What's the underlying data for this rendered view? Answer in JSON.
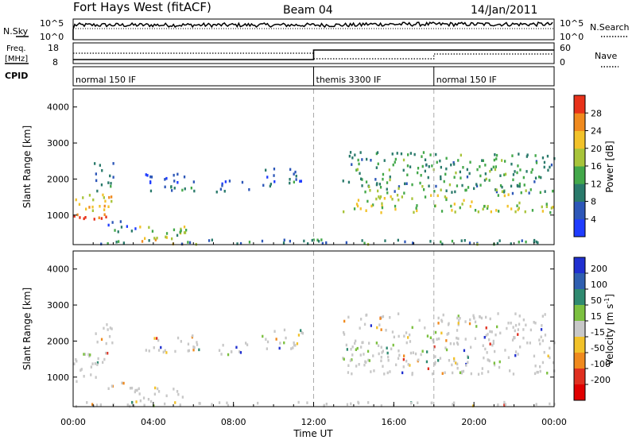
{
  "header": {
    "station": "Fort Hays West (fitACF)",
    "beam": "Beam 04",
    "date": "14/Jan/2011"
  },
  "strip_nsky": {
    "left_label": "N.Sky",
    "left_ticks": [
      "10^5",
      "10^0"
    ],
    "right_label": "N.Search",
    "right_ticks": [
      "10^5",
      "10^0"
    ]
  },
  "strip_freq": {
    "left_label_1": "Freq.",
    "left_label_2": "[MHz]",
    "left_ticks": [
      "18",
      "8"
    ],
    "right_label": "Nave",
    "right_ticks": [
      "60",
      "0"
    ]
  },
  "cpid": {
    "label": "CPID",
    "segments": [
      {
        "start_h": 0,
        "name": "normal 150 IF"
      },
      {
        "start_h": 12,
        "name": "themis 3300 IF"
      },
      {
        "start_h": 18,
        "name": "normal 150 IF"
      }
    ]
  },
  "chart_data": [
    {
      "type": "heatmap",
      "name": "power-panel",
      "ylabel": "Slant Range [km]",
      "x_range_hours": [
        0,
        24
      ],
      "y_range_km": [
        180,
        4500
      ],
      "y_ticks": [
        "1000",
        "2000",
        "3000",
        "4000"
      ],
      "colorbar_label": "Power [dB]",
      "colorbar_ticks": [
        "28",
        "24",
        "20",
        "16",
        "12",
        "8",
        "4"
      ],
      "colorbar_range": [
        0,
        32
      ],
      "colors": [
        "#1f3cff",
        "#2d57b8",
        "#2a7a6b",
        "#43a84a",
        "#a8c43a",
        "#f2c22a",
        "#f08a1e",
        "#e8321a"
      ],
      "echo_regions": [
        {
          "t0": 0,
          "t1": 1.9,
          "r0": 900,
          "r1": 1700,
          "strength": 0.75
        },
        {
          "t0": 1.0,
          "t1": 2.0,
          "r0": 1700,
          "r1": 2500,
          "strength": 0.2
        },
        {
          "t0": 1.7,
          "t1": 3.2,
          "r0": 550,
          "r1": 900,
          "strength": 0.15
        },
        {
          "t0": 3.0,
          "t1": 5.6,
          "r0": 200,
          "r1": 750,
          "strength": 0.55
        },
        {
          "t0": 3.5,
          "t1": 6.3,
          "r0": 1700,
          "r1": 2200,
          "strength": 0.1
        },
        {
          "t0": 7.0,
          "t1": 8.9,
          "r0": 1650,
          "r1": 2000,
          "strength": 0.1
        },
        {
          "t0": 9.4,
          "t1": 11.5,
          "r0": 1800,
          "r1": 2350,
          "strength": 0.15
        },
        {
          "t0": 13.4,
          "t1": 24.0,
          "r0": 1100,
          "r1": 2800,
          "strength": 0.4
        },
        {
          "t0": 0,
          "t1": 24,
          "r0": 180,
          "r1": 350,
          "strength": 0.3
        }
      ]
    },
    {
      "type": "heatmap",
      "name": "velocity-panel",
      "ylabel": "Slant Range [km]",
      "x_range_hours": [
        0,
        24
      ],
      "y_range_km": [
        180,
        4500
      ],
      "y_ticks": [
        "1000",
        "2000",
        "3000",
        "4000"
      ],
      "xlabel": "Time UT",
      "x_ticks": [
        "00:00",
        "04:00",
        "08:00",
        "12:00",
        "16:00",
        "20:00",
        "00:00"
      ],
      "colorbar_label": "Velocity [m s",
      "colorbar_label_sup": "-1",
      "colorbar_label_end": "]",
      "colorbar_ticks": [
        "200",
        "100",
        "50",
        "15",
        "-15",
        "-50",
        "-100",
        "-200"
      ],
      "colors": [
        "#2030d0",
        "#2f5fb0",
        "#2f8a70",
        "#7cc040",
        "#c8c8c8",
        "#f2c22a",
        "#f08a1e",
        "#e03020",
        "#e00000"
      ],
      "ground_scatter_color": "#c8c8c8"
    }
  ]
}
